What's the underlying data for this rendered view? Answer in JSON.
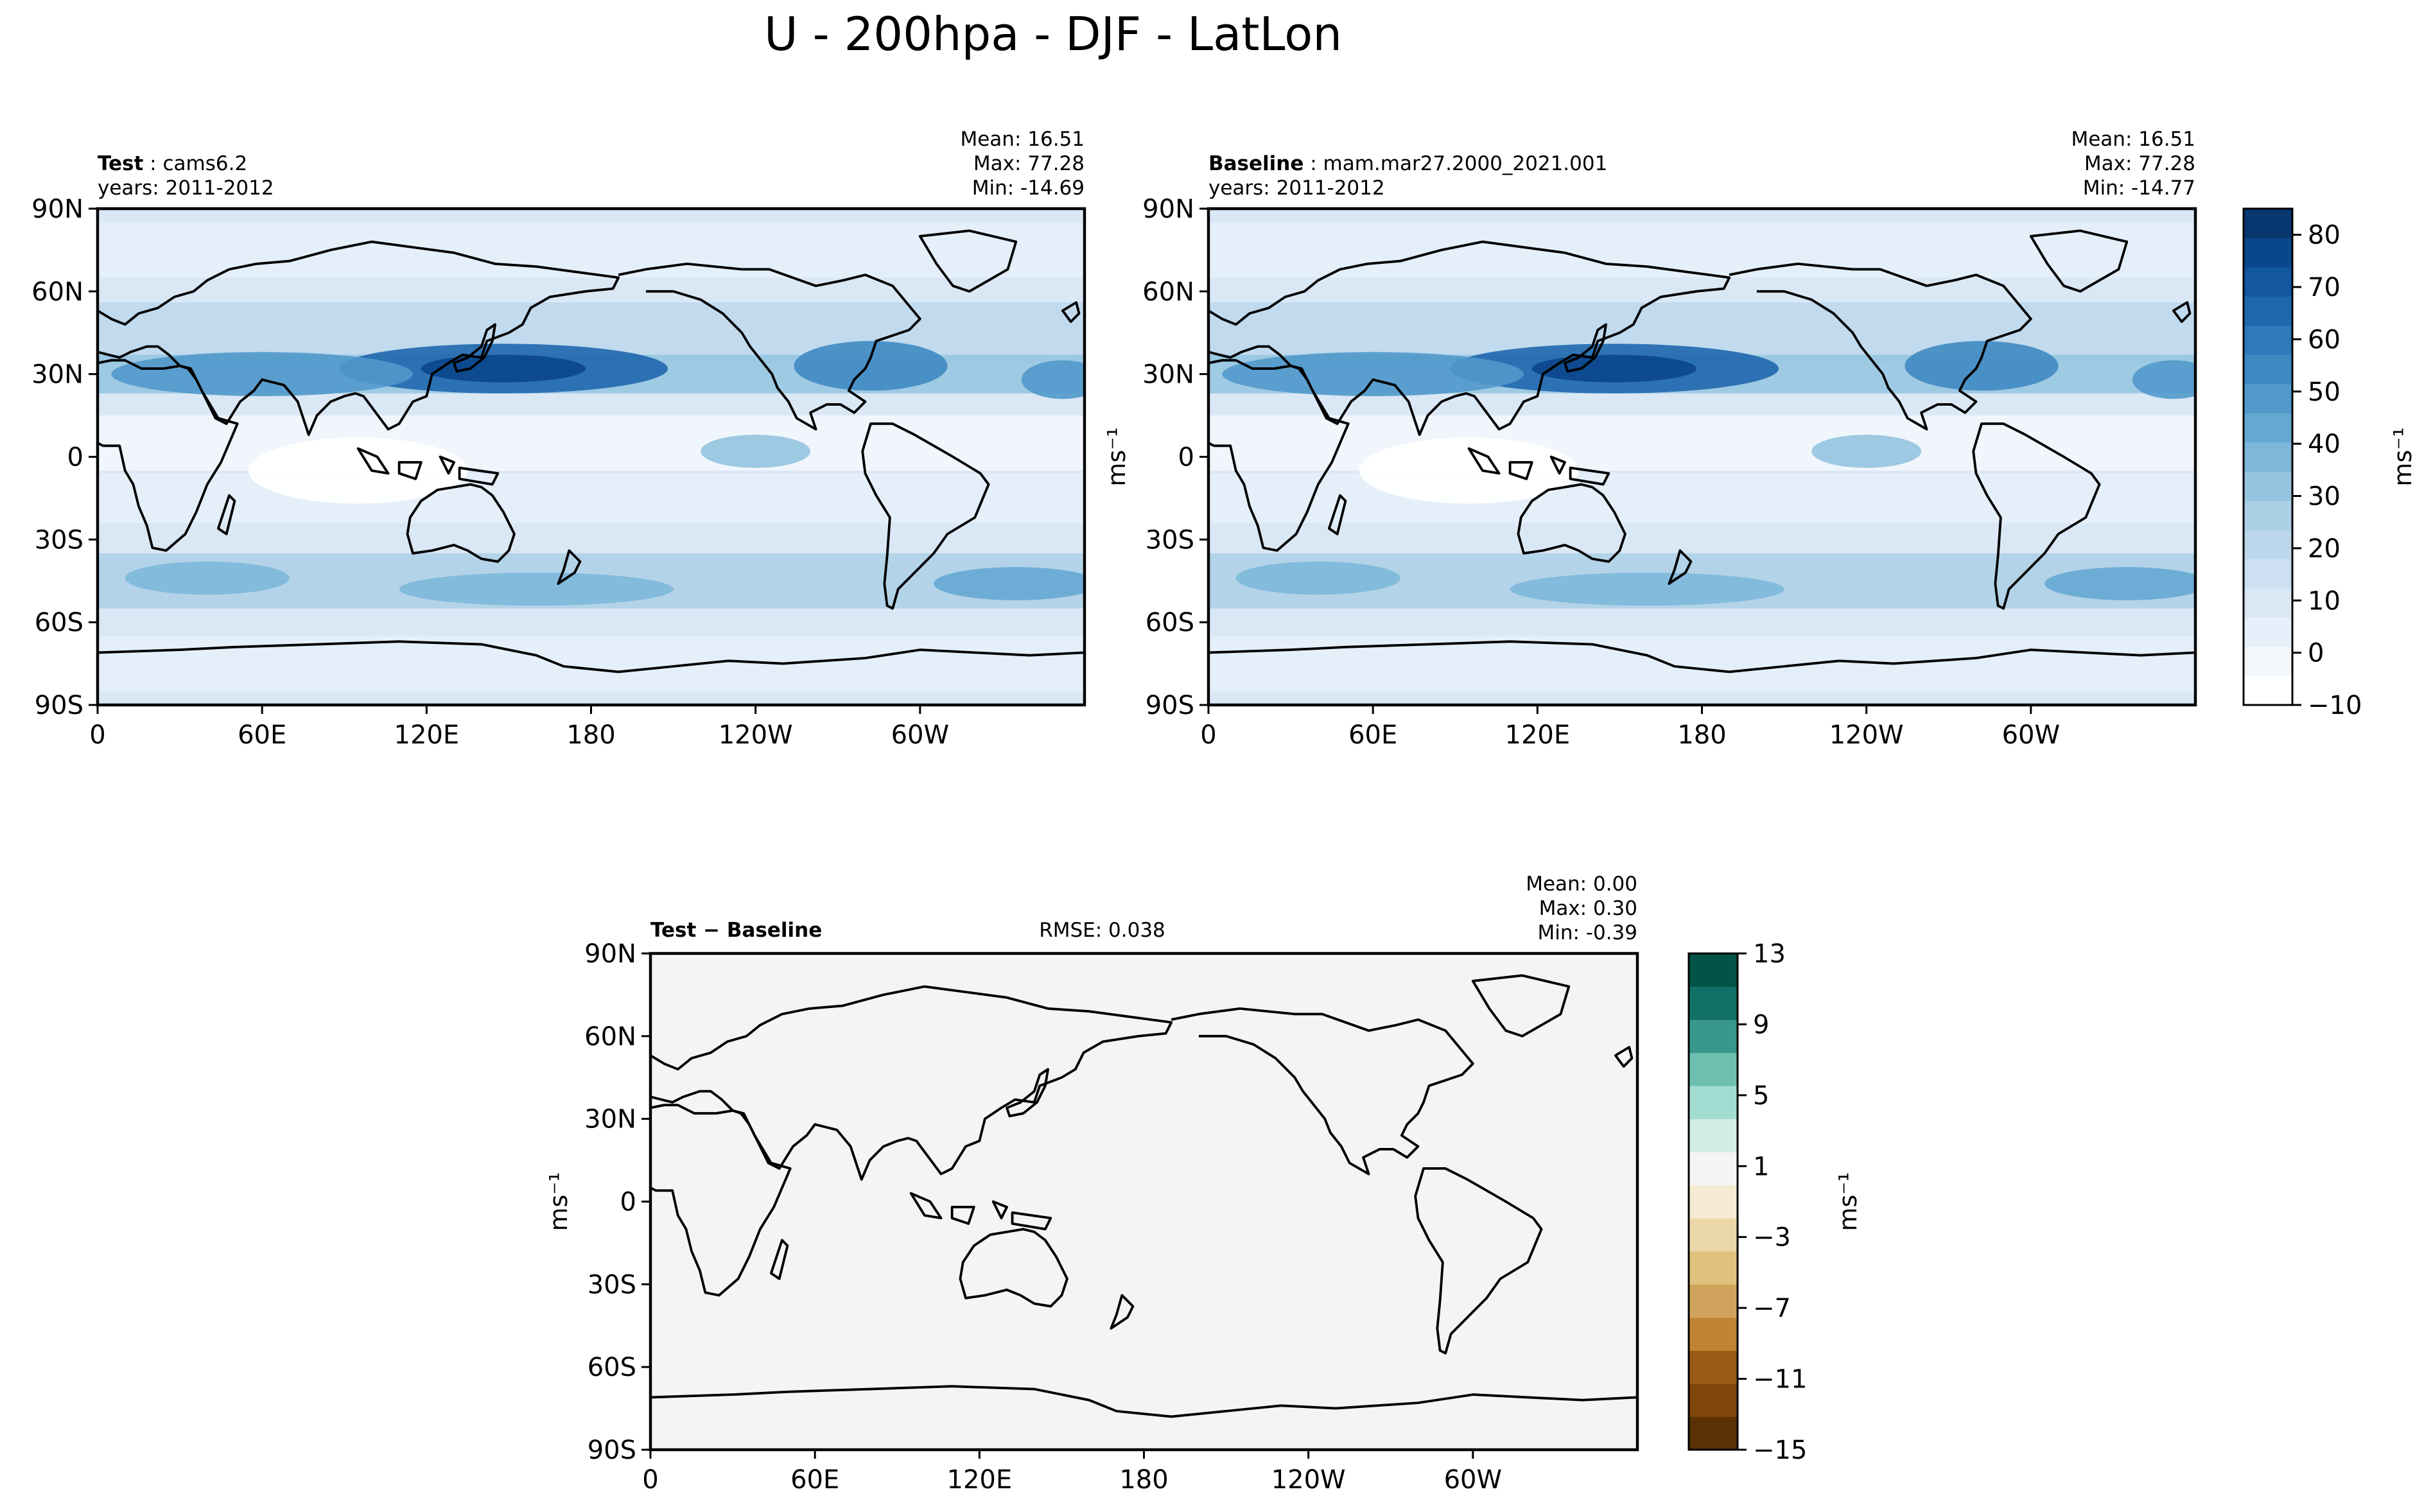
{
  "figure": {
    "title": "U - 200hpa - DJF - LatLon"
  },
  "chart_data": [
    {
      "type": "heatmap",
      "name": "test",
      "label_bold": "Test",
      "label_sep": ":",
      "label_rest": "cams6.2",
      "years": "years: 2011-2012",
      "stats": [
        "Mean: 16.51",
        "Max: 77.28",
        "Min: -14.69"
      ],
      "x_ticks": [
        "0",
        "60E",
        "120E",
        "180",
        "120W",
        "60W"
      ],
      "y_ticks": [
        "90N",
        "60N",
        "30N",
        "0",
        "30S",
        "60S",
        "90S"
      ],
      "lon_range": [
        0,
        360
      ],
      "lat_range": [
        -90,
        90
      ],
      "ylabel": "",
      "colormap": "blues",
      "jet_cores_ms": [
        {
          "lon": 148,
          "lat": 32,
          "value": 77
        },
        {
          "lon": 282,
          "lat": 32,
          "value": 45
        },
        {
          "lon": 55,
          "lat": 30,
          "value": 45
        },
        {
          "lon": 160,
          "lat": -48,
          "value": 30
        },
        {
          "lon": 330,
          "lat": -46,
          "value": 35
        }
      ]
    },
    {
      "type": "heatmap",
      "name": "baseline",
      "label_bold": "Baseline",
      "label_sep": ":",
      "label_rest": "mam.mar27.2000_2021.001",
      "years": "years: 2011-2012",
      "stats": [
        "Mean: 16.51",
        "Max: 77.28",
        "Min: -14.77"
      ],
      "x_ticks": [
        "0",
        "60E",
        "120E",
        "180",
        "120W",
        "60W"
      ],
      "y_ticks": [
        "90N",
        "60N",
        "30N",
        "0",
        "30S",
        "60S",
        "90S"
      ],
      "lon_range": [
        0,
        360
      ],
      "lat_range": [
        -90,
        90
      ],
      "ylabel": "ms⁻¹",
      "colormap": "blues"
    },
    {
      "type": "heatmap",
      "name": "difference",
      "label_bold": "Test − Baseline",
      "rmse": "RMSE: 0.038",
      "stats": [
        "Mean:  0.00",
        "Max:  0.30",
        "Min: -0.39"
      ],
      "x_ticks": [
        "0",
        "60E",
        "120E",
        "180",
        "120W",
        "60W"
      ],
      "y_ticks": [
        "90N",
        "60N",
        "30N",
        "0",
        "30S",
        "60S",
        "90S"
      ],
      "lon_range": [
        0,
        360
      ],
      "lat_range": [
        -90,
        90
      ],
      "ylabel": "ms⁻¹",
      "colormap": "brown-teal"
    }
  ],
  "colorbars": {
    "main": {
      "ticks": [
        "80",
        "70",
        "60",
        "50",
        "40",
        "30",
        "20",
        "10",
        "0",
        "−10"
      ],
      "tick_values": [
        80,
        70,
        60,
        50,
        40,
        30,
        20,
        10,
        0,
        -10
      ],
      "range": [
        -10,
        85
      ],
      "label": "ms⁻¹",
      "colors": [
        "#ffffff",
        "#f3f8fd",
        "#e6f0fa",
        "#dae8f6",
        "#cde0f2",
        "#bcd7ec",
        "#abcfe5",
        "#94c4df",
        "#7db8da",
        "#65a9d3",
        "#5199cb",
        "#3f89c2",
        "#2e79b9",
        "#1f67ad",
        "#12579f",
        "#0a468b",
        "#08366f"
      ]
    },
    "diff": {
      "ticks": [
        "13",
        "9",
        "5",
        "1",
        "−3",
        "−7",
        "−11",
        "−15"
      ],
      "tick_values": [
        13,
        9,
        5,
        1,
        -3,
        -7,
        -11,
        -15
      ],
      "range": [
        -15,
        13
      ],
      "label": "ms⁻¹",
      "colors": [
        "#5a3206",
        "#7f4509",
        "#9b5b16",
        "#bf8434",
        "#cfa35c",
        "#dfc27d",
        "#ebd7a8",
        "#f5ebd2",
        "#f5f5f5",
        "#d2ece6",
        "#a3dcd1",
        "#6dc0b0",
        "#3a978b",
        "#137067",
        "#015447"
      ]
    }
  }
}
